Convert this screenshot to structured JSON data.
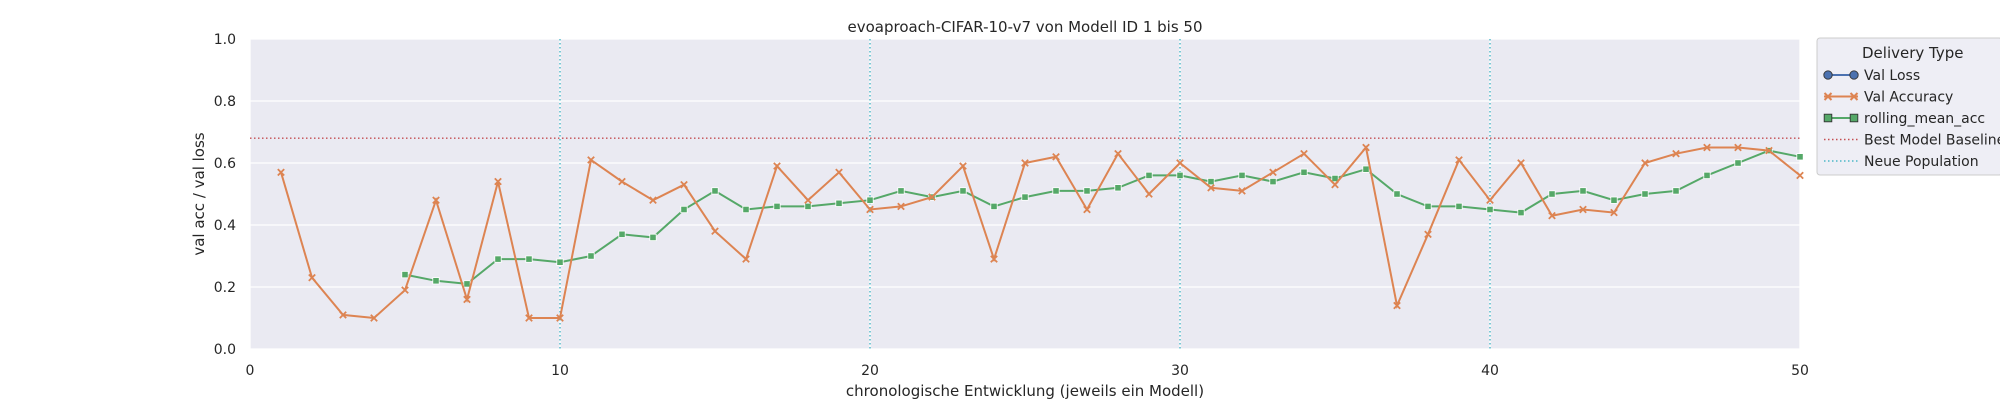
{
  "chart_data": {
    "type": "line",
    "title": "evoaproach-CIFAR-10-v7 von Modell ID 1 bis 50",
    "xlabel": "chronologische Entwicklung (jeweils ein Modell)",
    "ylabel": "val acc / val loss",
    "xlim": [
      0,
      50
    ],
    "ylim": [
      0.0,
      1.0
    ],
    "xticks": [
      "0",
      "10",
      "20",
      "30",
      "40",
      "50"
    ],
    "yticks": [
      "0.0",
      "0.2",
      "0.4",
      "0.6",
      "0.8",
      "1.0"
    ],
    "grid": true,
    "legend_title": "Delivery Type",
    "legend_position": "right",
    "colors": {
      "val_loss": "#4c72b0",
      "val_accuracy": "#dd8452",
      "rolling_mean_acc": "#55a868",
      "best_baseline": "#c44e52",
      "neue_population": "#4cb7c7",
      "plot_bg": "#eaeaf2"
    },
    "series": [
      {
        "name": "Val Loss",
        "marker": "o",
        "x": [],
        "values": []
      },
      {
        "name": "Val Accuracy",
        "marker": "x",
        "x": [
          1,
          2,
          3,
          4,
          5,
          6,
          7,
          8,
          9,
          10,
          11,
          12,
          13,
          14,
          15,
          16,
          17,
          18,
          19,
          20,
          21,
          22,
          23,
          24,
          25,
          26,
          27,
          28,
          29,
          30,
          31,
          32,
          33,
          34,
          35,
          36,
          37,
          38,
          39,
          40,
          41,
          42,
          43,
          44,
          45,
          46,
          47,
          48,
          49,
          50
        ],
        "values": [
          0.57,
          0.23,
          0.11,
          0.1,
          0.19,
          0.48,
          0.16,
          0.54,
          0.1,
          0.1,
          0.61,
          0.54,
          0.48,
          0.53,
          0.38,
          0.29,
          0.59,
          0.48,
          0.57,
          0.45,
          0.46,
          0.49,
          0.59,
          0.29,
          0.6,
          0.62,
          0.45,
          0.63,
          0.5,
          0.6,
          0.52,
          0.51,
          0.57,
          0.63,
          0.53,
          0.65,
          0.14,
          0.37,
          0.61,
          0.48,
          0.6,
          0.43,
          0.45,
          0.44,
          0.6,
          0.63,
          0.65,
          0.65,
          0.64,
          0.56
        ]
      },
      {
        "name": "rolling_mean_acc",
        "marker": "s",
        "x": [
          5,
          6,
          7,
          8,
          9,
          10,
          11,
          12,
          13,
          14,
          15,
          16,
          17,
          18,
          19,
          20,
          21,
          22,
          23,
          24,
          25,
          26,
          27,
          28,
          29,
          30,
          31,
          32,
          33,
          34,
          35,
          36,
          37,
          38,
          39,
          40,
          41,
          42,
          43,
          44,
          45,
          46,
          47,
          48,
          49,
          50
        ],
        "values": [
          0.24,
          0.22,
          0.21,
          0.29,
          0.29,
          0.28,
          0.3,
          0.37,
          0.36,
          0.45,
          0.51,
          0.45,
          0.46,
          0.46,
          0.47,
          0.48,
          0.51,
          0.49,
          0.51,
          0.46,
          0.49,
          0.51,
          0.51,
          0.52,
          0.56,
          0.56,
          0.54,
          0.56,
          0.54,
          0.57,
          0.55,
          0.58,
          0.5,
          0.46,
          0.46,
          0.45,
          0.44,
          0.5,
          0.51,
          0.48,
          0.5,
          0.51,
          0.56,
          0.6,
          0.64,
          0.62
        ]
      }
    ],
    "baseline": {
      "name": "Best Model Baseline",
      "value": 0.68
    },
    "population_lines": {
      "name": "Neue Population",
      "x": [
        10,
        20,
        30,
        40
      ]
    }
  }
}
